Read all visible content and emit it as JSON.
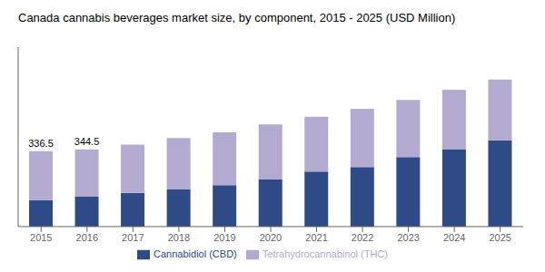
{
  "chart_data": {
    "type": "bar",
    "title": "Canada cannabis beverages market size, by component, 2015 - 2025 (USD Million)",
    "categories": [
      "2015",
      "2016",
      "2017",
      "2018",
      "2019",
      "2020",
      "2021",
      "2022",
      "2023",
      "2024",
      "2025"
    ],
    "series": [
      {
        "name": "Cannabidiol (CBD)",
        "color": "#2e4a87",
        "values": [
          118,
          135,
          150,
          165,
          185,
          210,
          245,
          265,
          310,
          345,
          385
        ]
      },
      {
        "name": "Tetrahydrocannabinol (THC)",
        "color": "#b3aad0",
        "values": [
          218.5,
          209.5,
          215,
          230,
          235,
          245,
          245,
          260,
          255,
          265,
          270
        ]
      }
    ],
    "stacked": true,
    "ylim": [
      0,
      800
    ],
    "yticks": [],
    "grid": false,
    "legend": "bottom",
    "tick_labels": "x",
    "annotations": [
      {
        "x": "2015",
        "text": "336.5"
      },
      {
        "x": "2016",
        "text": "344.5"
      }
    ]
  }
}
